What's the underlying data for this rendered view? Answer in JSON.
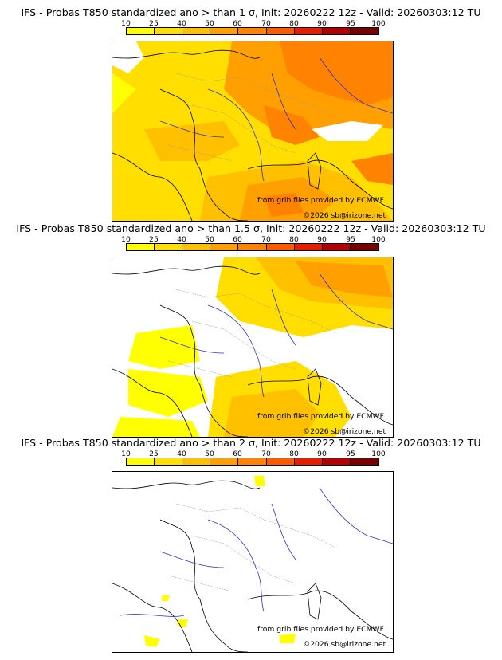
{
  "legend": {
    "ticks": [
      "10",
      "25",
      "40",
      "50",
      "60",
      "70",
      "80",
      "90",
      "95",
      "100"
    ],
    "colors": [
      "#ffff00",
      "#ffde00",
      "#ffc000",
      "#ffa000",
      "#ff8200",
      "#ff5a00",
      "#e61e00",
      "#b40000",
      "#780000"
    ]
  },
  "panels": [
    {
      "title": "IFS - Probas T850  standardized ano > than 1 σ, Init: 20260222 12z - Valid: 20260303:12 TU",
      "credit_source": "from grib files provided by ECMWF",
      "credit_copyright": "©2026 sb@irizone.net",
      "shading": "strong"
    },
    {
      "title": "IFS - Probas T850  standardized ano > than 1.5 σ, Init: 20260222 12z - Valid: 20260303:12 TU",
      "credit_source": "from grib files provided by ECMWF",
      "credit_copyright": "©2026 sb@irizone.net",
      "shading": "medium"
    },
    {
      "title": "IFS - Probas T850  standardized ano > than 2 σ, Init: 20260222 12z - Valid: 20260303:12 TU",
      "credit_source": "from grib files provided by ECMWF",
      "credit_copyright": "©2026 sb@irizone.net",
      "shading": "weak"
    }
  ]
}
